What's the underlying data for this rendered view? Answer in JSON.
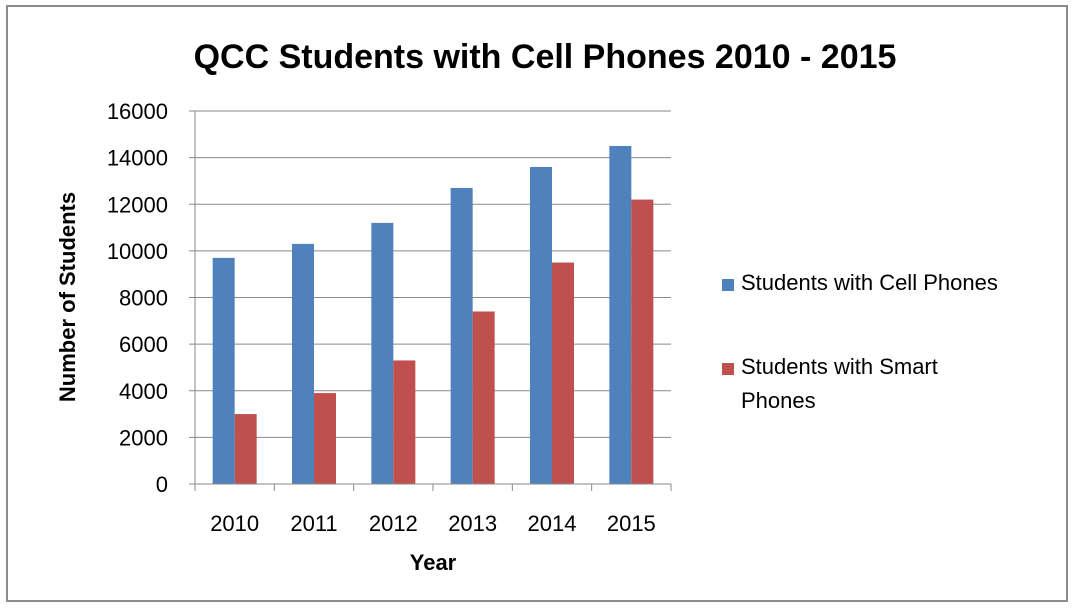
{
  "chart_data": {
    "type": "bar",
    "title": "QCC Students with Cell Phones 2010 - 2015",
    "xlabel": "Year",
    "ylabel": "Number of Students",
    "categories": [
      "2010",
      "2011",
      "2012",
      "2013",
      "2014",
      "2015"
    ],
    "series": [
      {
        "name": "Students with Cell Phones",
        "color": "#4f81bd",
        "values": [
          9700,
          10300,
          11200,
          12700,
          13600,
          14500
        ]
      },
      {
        "name": "Students with Smart Phones",
        "color": "#c0504d",
        "values": [
          3000,
          3900,
          5300,
          7400,
          9500,
          12200
        ]
      }
    ],
    "ylim": [
      0,
      16000
    ],
    "yticks": [
      0,
      2000,
      4000,
      6000,
      8000,
      10000,
      12000,
      14000,
      16000
    ],
    "grid": true,
    "legend_position": "right"
  }
}
